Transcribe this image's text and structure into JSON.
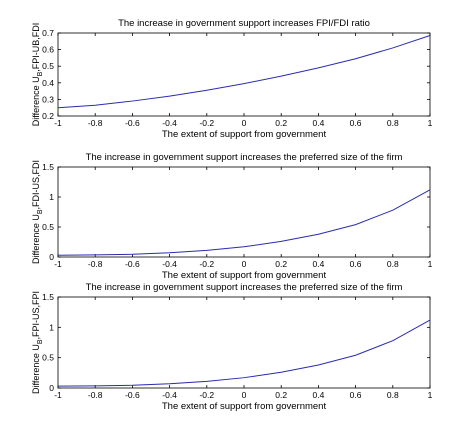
{
  "chart_data": [
    {
      "type": "line",
      "title": "The increase in government support increases FPI/FDI ratio",
      "xlabel": "The extent of support from government",
      "ylabel": "Difference U_B,FPI-UB,FDI",
      "ylabel_parts": [
        "Difference U",
        "B",
        ",FPI-UB,FDI"
      ],
      "xlim": [
        -1,
        1
      ],
      "ylim": [
        0.2,
        0.7
      ],
      "xticks": [
        "-1",
        "-0.8",
        "-0.6",
        "-0.4",
        "-0.2",
        "0",
        "0.2",
        "0.4",
        "0.6",
        "0.8",
        "1"
      ],
      "yticks": [
        "0.2",
        "0.3",
        "0.4",
        "0.5",
        "0.6",
        "0.7"
      ],
      "grid": false,
      "color": "#2b2bb0",
      "x": [
        -1,
        -0.8,
        -0.6,
        -0.4,
        -0.2,
        0,
        0.2,
        0.4,
        0.6,
        0.8,
        1
      ],
      "y": [
        0.25,
        0.265,
        0.29,
        0.32,
        0.355,
        0.395,
        0.44,
        0.49,
        0.545,
        0.61,
        0.685
      ]
    },
    {
      "type": "line",
      "title": "The increase in government support increases the preferred size of the firm",
      "xlabel": "The extent of support from government",
      "ylabel": "Difference U_B,FDI-US,FDI",
      "ylabel_parts": [
        "Difference U",
        "B",
        ",FDI-US,FDI"
      ],
      "xlim": [
        -1,
        1
      ],
      "ylim": [
        0,
        1.5
      ],
      "xticks": [
        "-1",
        "-0.8",
        "-0.6",
        "-0.4",
        "-0.2",
        "0",
        "0.2",
        "0.4",
        "0.6",
        "0.8",
        "1"
      ],
      "yticks": [
        "0",
        "0.5",
        "1",
        "1.5"
      ],
      "grid": false,
      "color": "#2b2bb0",
      "x": [
        -1,
        -0.8,
        -0.6,
        -0.4,
        -0.2,
        0,
        0.2,
        0.4,
        0.6,
        0.8,
        1
      ],
      "y": [
        0.03,
        0.035,
        0.045,
        0.07,
        0.11,
        0.17,
        0.26,
        0.38,
        0.54,
        0.78,
        1.12
      ]
    },
    {
      "type": "line",
      "title": "The increase in government support increases the preferred size of the firm",
      "xlabel": "The extent of support from government",
      "ylabel": "Difference U_B,FPI-US,FPI",
      "ylabel_parts": [
        "Difference U",
        "B",
        ",FPI-US,FPI"
      ],
      "xlim": [
        -1,
        1
      ],
      "ylim": [
        0,
        1.5
      ],
      "xticks": [
        "-1",
        "-0.8",
        "-0.6",
        "-0.4",
        "-0.2",
        "0",
        "0.2",
        "0.4",
        "0.6",
        "0.8",
        "1"
      ],
      "yticks": [
        "0",
        "0.5",
        "1",
        "1.5"
      ],
      "grid": false,
      "color": "#2b2bb0",
      "x": [
        -1,
        -0.8,
        -0.6,
        -0.4,
        -0.2,
        0,
        0.2,
        0.4,
        0.6,
        0.8,
        1
      ],
      "y": [
        0.03,
        0.035,
        0.045,
        0.07,
        0.11,
        0.17,
        0.26,
        0.38,
        0.54,
        0.78,
        1.12
      ]
    }
  ]
}
